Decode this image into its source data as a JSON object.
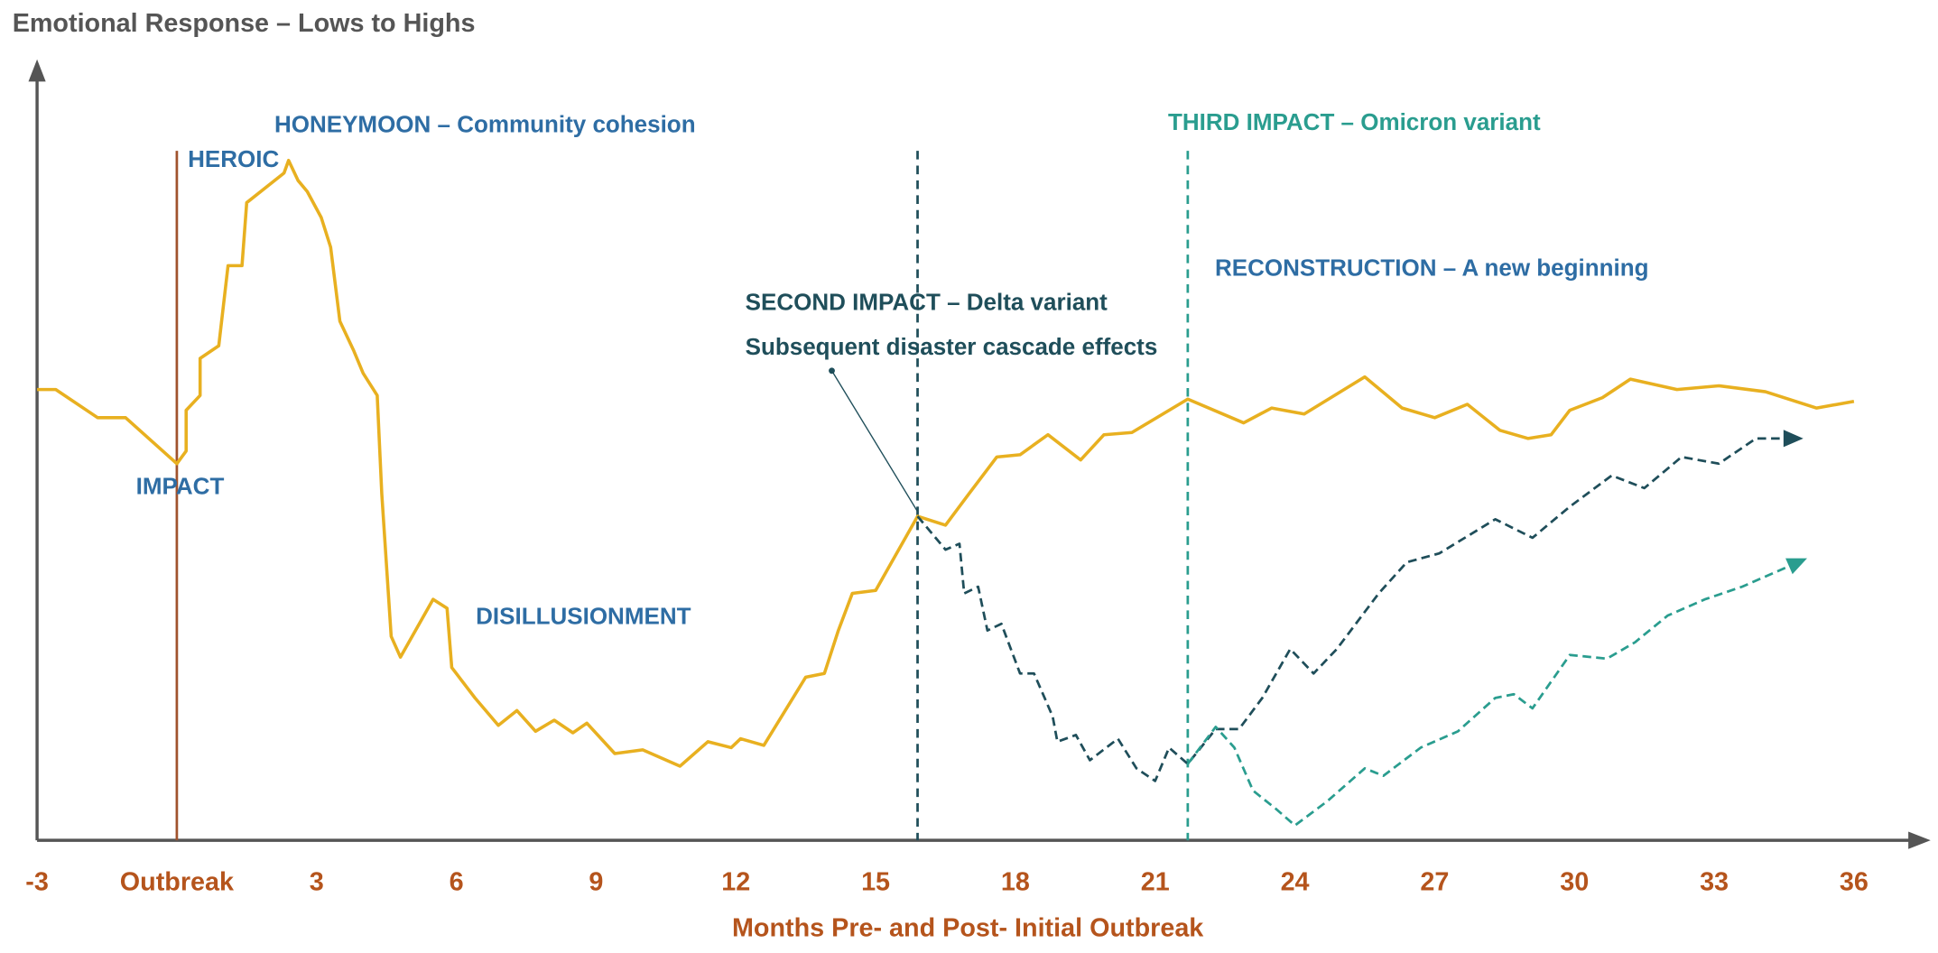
{
  "chart_data": {
    "type": "line",
    "title": "Emotional Response – Lows to Highs",
    "x_label": "Months Pre- and Post- Initial Outbreak",
    "xlim": [
      -3,
      36
    ],
    "ylim": [
      0,
      100
    ],
    "xticks": [
      -3,
      {
        "value": 0,
        "label": "Outbreak"
      },
      3,
      6,
      9,
      12,
      15,
      18,
      21,
      24,
      27,
      30,
      33,
      36
    ],
    "grid": false,
    "series": [
      {
        "color": "#e8b020",
        "dashed": false,
        "arrow": false,
        "x": [
          -3.0,
          -2.6,
          -1.7,
          -1.1,
          0.0,
          0.2,
          0.2,
          0.5,
          0.5,
          0.9,
          1.1,
          1.4,
          1.5,
          2.3,
          2.4,
          2.6,
          2.8,
          3.1,
          3.3,
          3.5,
          3.8,
          4.0,
          4.3,
          4.4,
          4.6,
          4.8,
          5.5,
          5.8,
          5.9,
          6.4,
          6.9,
          7.3,
          7.7,
          8.1,
          8.5,
          8.8,
          9.4,
          10.0,
          10.8,
          11.4,
          11.9,
          12.1,
          12.6,
          13.5,
          13.9,
          14.2,
          14.5,
          15.0,
          15.9,
          16.5,
          17.0,
          17.6,
          18.1,
          18.7,
          19.4,
          19.9,
          20.5,
          21.7,
          22.9,
          23.5,
          24.2,
          25.5,
          26.3,
          27.0,
          27.7,
          28.4,
          29.0,
          29.5,
          29.9,
          30.6,
          31.2,
          32.2,
          33.1,
          34.1,
          35.2,
          36.0
        ],
        "values": [
          60.8,
          60.8,
          57.0,
          57.0,
          50.8,
          52.5,
          58.0,
          60.0,
          65.0,
          66.7,
          77.5,
          77.5,
          86.0,
          90.0,
          91.7,
          89.0,
          87.5,
          84.0,
          80.0,
          70.0,
          66.0,
          63.0,
          60.0,
          46.7,
          27.5,
          24.7,
          32.5,
          31.3,
          23.3,
          19.2,
          15.5,
          17.5,
          14.7,
          16.2,
          14.5,
          15.8,
          11.7,
          12.2,
          10.0,
          13.3,
          12.5,
          13.7,
          12.8,
          22.0,
          22.5,
          28.3,
          33.3,
          33.7,
          43.7,
          42.5,
          46.7,
          51.7,
          52.0,
          54.7,
          51.3,
          54.7,
          55.0,
          59.5,
          56.3,
          58.3,
          57.5,
          62.5,
          58.3,
          57.0,
          58.8,
          55.3,
          54.2,
          54.7,
          58.0,
          59.7,
          62.2,
          60.8,
          61.3,
          60.5,
          58.3,
          59.2
        ]
      },
      {
        "color": "#1f4e5a",
        "dashed": true,
        "arrow": true,
        "x": [
          15.9,
          16.5,
          16.8,
          16.9,
          17.2,
          17.4,
          17.7,
          18.1,
          18.4,
          18.8,
          18.9,
          19.3,
          19.6,
          20.2,
          20.6,
          21.0,
          21.3,
          21.7,
          22.3,
          22.8,
          23.3,
          23.9,
          24.4,
          24.9,
          25.8,
          26.4,
          27.1,
          28.3,
          29.1,
          29.9,
          30.8,
          31.5,
          32.3,
          33.1,
          33.9,
          34.7
        ],
        "values": [
          43.7,
          39.2,
          40.0,
          33.3,
          34.2,
          28.3,
          29.2,
          22.5,
          22.5,
          16.7,
          13.3,
          14.2,
          10.8,
          13.7,
          9.7,
          8.0,
          12.5,
          10.3,
          15.0,
          15.0,
          19.2,
          25.8,
          22.5,
          25.8,
          33.3,
          37.5,
          38.7,
          43.3,
          40.8,
          45.0,
          49.2,
          47.5,
          51.7,
          50.8,
          54.2,
          54.2
        ]
      },
      {
        "color": "#2a9d8f",
        "dashed": true,
        "arrow": true,
        "x": [
          21.7,
          22.3,
          22.7,
          23.1,
          23.6,
          24.0,
          24.7,
          25.5,
          25.9,
          26.7,
          27.5,
          28.3,
          28.7,
          29.1,
          29.9,
          30.7,
          31.3,
          32.0,
          32.8,
          33.6,
          34.8
        ],
        "values": [
          10.3,
          15.3,
          12.5,
          6.7,
          4.2,
          2.0,
          5.3,
          9.7,
          8.7,
          12.5,
          14.7,
          19.2,
          19.7,
          17.8,
          25.0,
          24.5,
          26.7,
          30.3,
          32.5,
          34.2,
          37.5
        ]
      }
    ],
    "vlines": [
      {
        "x": 0,
        "color": "#a0522d",
        "dashed": false
      },
      {
        "x": 15.9,
        "color": "#1f4e5a",
        "dashed": true
      },
      {
        "x": 21.7,
        "color": "#2a9d8f",
        "dashed": true
      }
    ],
    "annotations": [
      {
        "text": "HONEYMOON – Community cohesion",
        "color": "#2e6da4"
      },
      {
        "text": "HEROIC",
        "color": "#2e6da4"
      },
      {
        "text": "IMPACT",
        "color": "#2e6da4"
      },
      {
        "text": "DISILLUSIONMENT",
        "color": "#2e6da4"
      },
      {
        "text": "SECOND IMPACT – Delta variant",
        "color": "#1f4e5a"
      },
      {
        "text": "Subsequent disaster cascade effects",
        "color": "#1f4e5a"
      },
      {
        "text": "THIRD IMPACT – Omicron variant",
        "color": "#2a9d8f"
      },
      {
        "text": "RECONSTRUCTION – A new beginning",
        "color": "#2e6da4"
      }
    ]
  }
}
